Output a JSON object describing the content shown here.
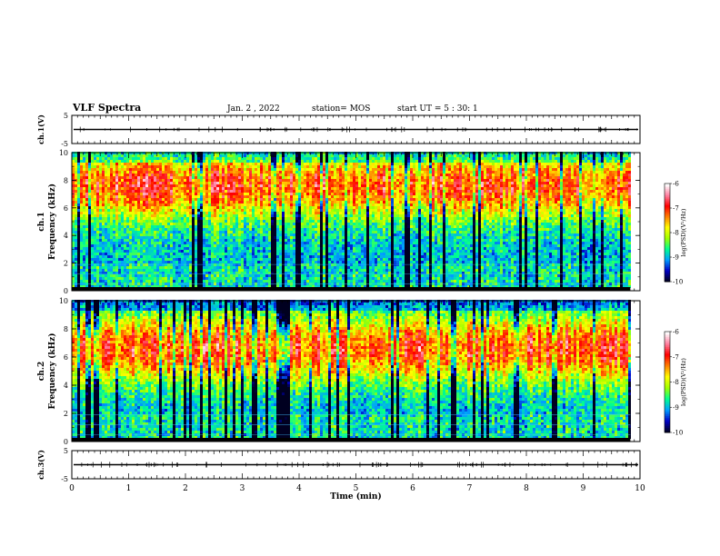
{
  "header": {
    "title": "VLF Spectra",
    "date": "Jan. 2 , 2022",
    "station": "station= MOS",
    "start": "start UT =  5 : 30: 1"
  },
  "chart_data": [
    {
      "type": "line",
      "name": "ch1-waveform",
      "ylabel": "ch.1(V)",
      "ylim": [
        -5,
        5
      ],
      "yticks": [
        "5",
        "-5"
      ],
      "xlim": [
        0,
        10
      ],
      "value": 0
    },
    {
      "type": "heatmap",
      "name": "ch1-spectrogram",
      "ylabel": "Frequency (kHz)",
      "channel_label": "ch.1",
      "xlim": [
        0,
        10
      ],
      "ylim": [
        0,
        10
      ],
      "data_end_min": 9.83,
      "yticks": [
        "0",
        "2",
        "4",
        "6",
        "8",
        "10"
      ],
      "colorbar": {
        "label": "log(PSD)(V²/Hz)",
        "range": [
          -10,
          -6
        ],
        "ticks": [
          "-6",
          "-7",
          "-8",
          "-9",
          "-10"
        ]
      }
    },
    {
      "type": "heatmap",
      "name": "ch2-spectrogram",
      "ylabel": "Frequency (kHz)",
      "channel_label": "ch.2",
      "xlim": [
        0,
        10
      ],
      "ylim": [
        0,
        10
      ],
      "data_end_min": 9.83,
      "yticks": [
        "0",
        "2",
        "4",
        "6",
        "8",
        "10"
      ],
      "colorbar": {
        "label": "log(PSD)(V²/Hz)",
        "range": [
          -10,
          -6
        ],
        "ticks": [
          "-6",
          "-7",
          "-8",
          "-9",
          "-10"
        ]
      }
    },
    {
      "type": "line",
      "name": "ch3-waveform",
      "ylabel": "ch.3(V)",
      "ylim": [
        -5,
        5
      ],
      "yticks": [
        "5",
        "-5"
      ],
      "xlim": [
        0,
        10
      ],
      "value": 0
    }
  ],
  "xaxis": {
    "label": "Time (min)",
    "ticks": [
      "0",
      "1",
      "2",
      "3",
      "4",
      "5",
      "6",
      "7",
      "8",
      "9",
      "10"
    ]
  },
  "colors": {
    "colormap": [
      "#000020",
      "#0000c8",
      "#00a0ff",
      "#00ff90",
      "#a0ff00",
      "#ffff00",
      "#ff8000",
      "#ff0000",
      "#ff80a0",
      "#ffffff"
    ],
    "waveform": "#000000"
  }
}
